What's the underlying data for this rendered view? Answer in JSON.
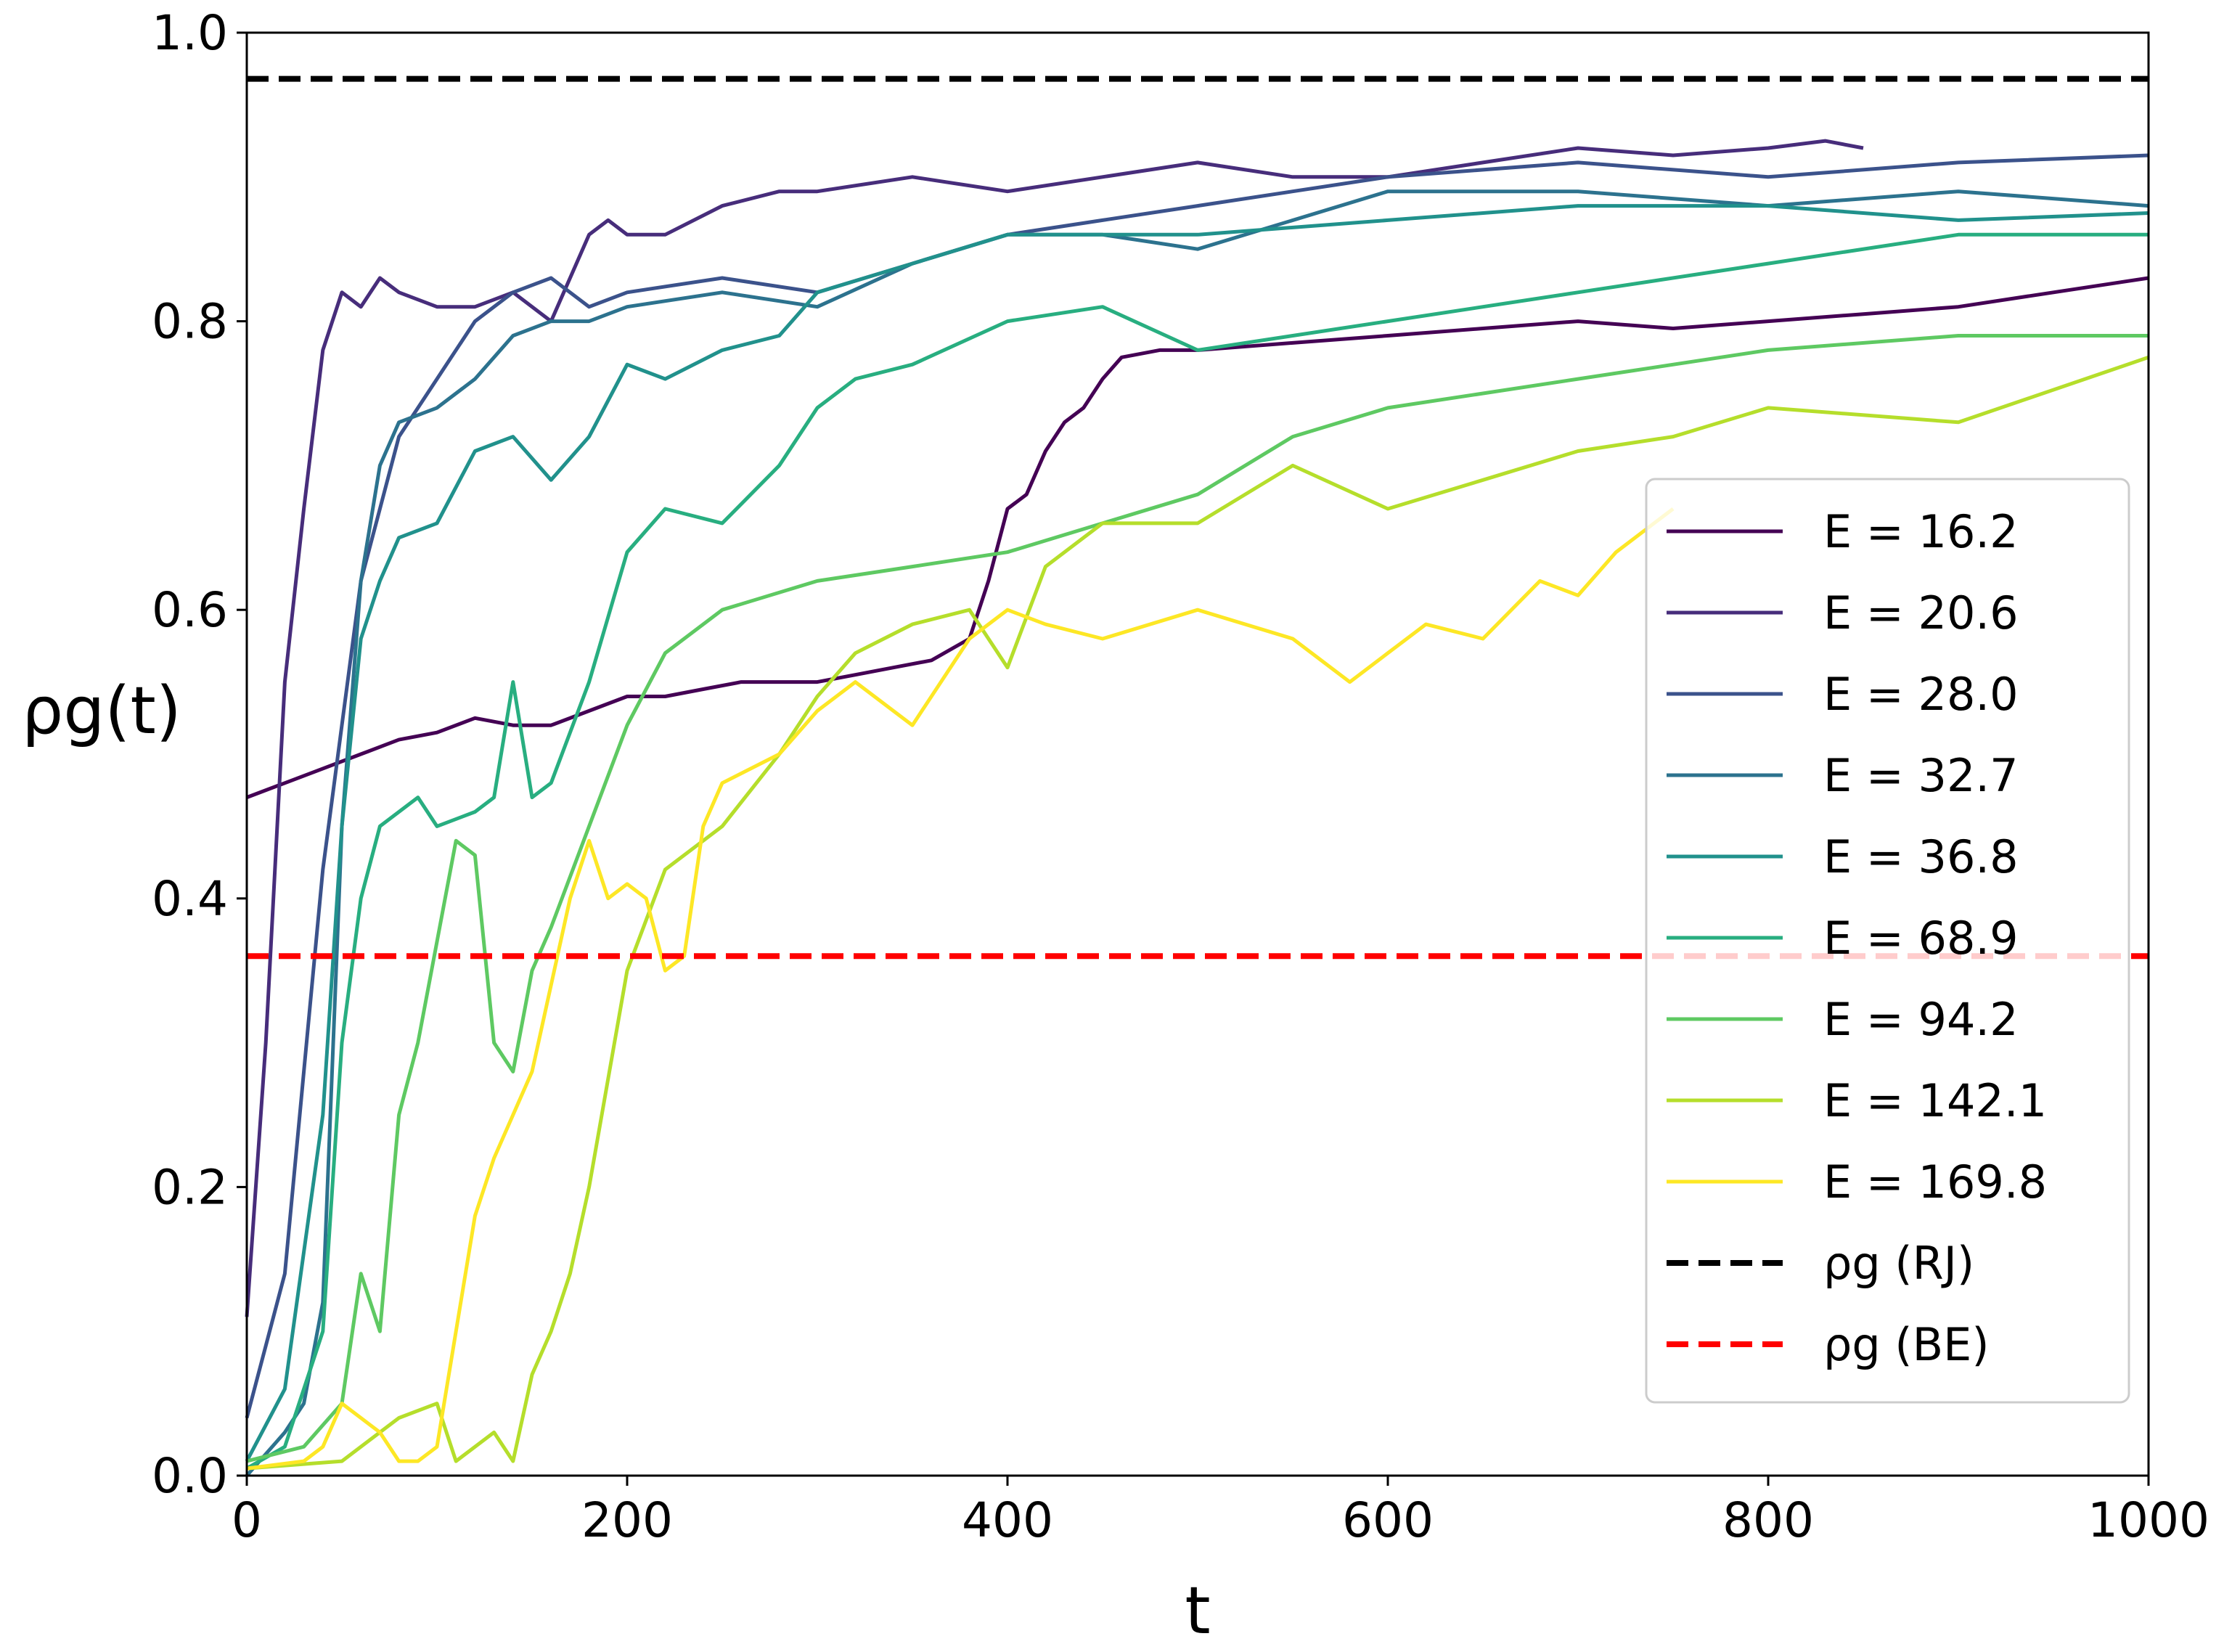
{
  "chart_data": {
    "type": "line",
    "title": "",
    "xlabel": "t",
    "ylabel": "ρg(t)",
    "xlim": [
      0,
      1000
    ],
    "ylim": [
      0.0,
      1.0
    ],
    "xticks": [
      "0",
      "200",
      "400",
      "600",
      "800",
      "1000"
    ],
    "yticks": [
      "0.0",
      "0.2",
      "0.4",
      "0.6",
      "0.8",
      "1.0"
    ],
    "grid": false,
    "legend_position": "right",
    "series": [
      {
        "name": "E = 16.2",
        "color": "#440154",
        "style": "solid",
        "x": [
          0,
          20,
          40,
          60,
          80,
          100,
          120,
          140,
          160,
          180,
          200,
          220,
          240,
          260,
          280,
          300,
          320,
          340,
          360,
          380,
          390,
          400,
          410,
          420,
          430,
          440,
          450,
          460,
          480,
          500,
          550,
          600,
          650,
          700,
          750,
          800,
          850,
          900,
          950,
          1000
        ],
        "y": [
          0.47,
          0.48,
          0.49,
          0.5,
          0.51,
          0.515,
          0.525,
          0.52,
          0.52,
          0.53,
          0.54,
          0.54,
          0.545,
          0.55,
          0.55,
          0.55,
          0.555,
          0.56,
          0.565,
          0.58,
          0.62,
          0.67,
          0.68,
          0.71,
          0.73,
          0.74,
          0.76,
          0.775,
          0.78,
          0.78,
          0.785,
          0.79,
          0.795,
          0.8,
          0.795,
          0.8,
          0.805,
          0.81,
          0.82,
          0.83
        ]
      },
      {
        "name": "E = 20.6",
        "color": "#472d7b",
        "style": "solid",
        "x": [
          0,
          10,
          20,
          30,
          40,
          50,
          60,
          70,
          80,
          100,
          120,
          140,
          160,
          170,
          180,
          190,
          200,
          220,
          250,
          280,
          300,
          350,
          400,
          450,
          500,
          550,
          600,
          650,
          700,
          750,
          800,
          830,
          850
        ],
        "y": [
          0.11,
          0.3,
          0.55,
          0.67,
          0.78,
          0.82,
          0.81,
          0.83,
          0.82,
          0.81,
          0.81,
          0.82,
          0.8,
          0.83,
          0.86,
          0.87,
          0.86,
          0.86,
          0.88,
          0.89,
          0.89,
          0.9,
          0.89,
          0.9,
          0.91,
          0.9,
          0.9,
          0.91,
          0.92,
          0.915,
          0.92,
          0.925,
          0.92
        ]
      },
      {
        "name": "E = 28.0",
        "color": "#3b528b",
        "style": "solid",
        "x": [
          0,
          20,
          40,
          60,
          80,
          100,
          120,
          140,
          160,
          180,
          200,
          250,
          300,
          350,
          400,
          450,
          500,
          600,
          700,
          800,
          900,
          1000
        ],
        "y": [
          0.04,
          0.14,
          0.42,
          0.62,
          0.72,
          0.76,
          0.8,
          0.82,
          0.83,
          0.81,
          0.82,
          0.83,
          0.82,
          0.84,
          0.86,
          0.87,
          0.88,
          0.9,
          0.91,
          0.9,
          0.91,
          0.915
        ]
      },
      {
        "name": "E = 32.7",
        "color": "#2c728e",
        "style": "solid",
        "x": [
          0,
          20,
          30,
          40,
          50,
          60,
          70,
          80,
          100,
          120,
          140,
          160,
          180,
          200,
          250,
          300,
          350,
          400,
          450,
          500,
          600,
          700,
          800,
          900,
          1000
        ],
        "y": [
          0.0,
          0.03,
          0.05,
          0.12,
          0.45,
          0.62,
          0.7,
          0.73,
          0.74,
          0.76,
          0.79,
          0.8,
          0.8,
          0.81,
          0.82,
          0.81,
          0.84,
          0.86,
          0.86,
          0.85,
          0.89,
          0.89,
          0.88,
          0.89,
          0.88
        ]
      },
      {
        "name": "E = 36.8",
        "color": "#21918c",
        "style": "solid",
        "x": [
          0,
          20,
          40,
          50,
          60,
          70,
          80,
          100,
          120,
          140,
          160,
          180,
          200,
          220,
          250,
          280,
          300,
          350,
          400,
          450,
          500,
          600,
          700,
          800,
          900,
          1000
        ],
        "y": [
          0.01,
          0.06,
          0.25,
          0.45,
          0.58,
          0.62,
          0.65,
          0.66,
          0.71,
          0.72,
          0.69,
          0.72,
          0.77,
          0.76,
          0.78,
          0.79,
          0.82,
          0.84,
          0.86,
          0.86,
          0.86,
          0.87,
          0.88,
          0.88,
          0.87,
          0.875
        ]
      },
      {
        "name": "E = 68.9",
        "color": "#28ae80",
        "style": "solid",
        "x": [
          0,
          20,
          40,
          50,
          60,
          70,
          80,
          90,
          100,
          120,
          130,
          140,
          150,
          160,
          180,
          200,
          220,
          250,
          280,
          300,
          320,
          350,
          400,
          450,
          500,
          550,
          600,
          700,
          800,
          900,
          1000
        ],
        "y": [
          0.005,
          0.02,
          0.1,
          0.3,
          0.4,
          0.45,
          0.46,
          0.47,
          0.45,
          0.46,
          0.47,
          0.55,
          0.47,
          0.48,
          0.55,
          0.64,
          0.67,
          0.66,
          0.7,
          0.74,
          0.76,
          0.77,
          0.8,
          0.81,
          0.78,
          0.79,
          0.8,
          0.82,
          0.84,
          0.86,
          0.86
        ]
      },
      {
        "name": "E = 94.2",
        "color": "#5ec962",
        "style": "solid",
        "x": [
          0,
          30,
          50,
          60,
          70,
          80,
          90,
          100,
          110,
          120,
          130,
          140,
          150,
          160,
          180,
          200,
          220,
          250,
          300,
          350,
          400,
          450,
          500,
          550,
          600,
          700,
          800,
          900,
          1000
        ],
        "y": [
          0.01,
          0.02,
          0.05,
          0.14,
          0.1,
          0.25,
          0.3,
          0.37,
          0.44,
          0.43,
          0.3,
          0.28,
          0.35,
          0.38,
          0.45,
          0.52,
          0.57,
          0.6,
          0.62,
          0.63,
          0.64,
          0.66,
          0.68,
          0.72,
          0.74,
          0.76,
          0.78,
          0.79,
          0.79
        ]
      },
      {
        "name": "E = 142.1",
        "color": "#b5de2b",
        "style": "solid",
        "x": [
          0,
          50,
          80,
          100,
          110,
          120,
          130,
          140,
          150,
          160,
          170,
          180,
          200,
          220,
          250,
          280,
          300,
          320,
          350,
          380,
          400,
          420,
          450,
          500,
          550,
          600,
          650,
          700,
          750,
          800,
          900,
          1000
        ],
        "y": [
          0.005,
          0.01,
          0.04,
          0.05,
          0.01,
          0.02,
          0.03,
          0.01,
          0.07,
          0.1,
          0.14,
          0.2,
          0.35,
          0.42,
          0.45,
          0.5,
          0.54,
          0.57,
          0.59,
          0.6,
          0.56,
          0.63,
          0.66,
          0.66,
          0.7,
          0.67,
          0.69,
          0.71,
          0.72,
          0.74,
          0.73,
          0.775
        ]
      },
      {
        "name": "E = 169.8",
        "color": "#fde725",
        "style": "solid",
        "x": [
          0,
          30,
          40,
          50,
          60,
          70,
          80,
          90,
          100,
          110,
          120,
          130,
          140,
          150,
          160,
          170,
          180,
          190,
          200,
          210,
          220,
          230,
          240,
          250,
          280,
          300,
          320,
          350,
          380,
          400,
          420,
          450,
          500,
          550,
          580,
          600,
          620,
          650,
          680,
          700,
          720,
          750
        ],
        "y": [
          0.005,
          0.01,
          0.02,
          0.05,
          0.04,
          0.03,
          0.01,
          0.01,
          0.02,
          0.1,
          0.18,
          0.22,
          0.25,
          0.28,
          0.34,
          0.4,
          0.44,
          0.4,
          0.41,
          0.4,
          0.35,
          0.36,
          0.45,
          0.48,
          0.5,
          0.53,
          0.55,
          0.52,
          0.58,
          0.6,
          0.59,
          0.58,
          0.6,
          0.58,
          0.55,
          0.57,
          0.59,
          0.58,
          0.62,
          0.61,
          0.64,
          0.67
        ]
      },
      {
        "name": "ρg (RJ)",
        "color": "#000000",
        "style": "dashed",
        "x": [
          0,
          1000
        ],
        "y": [
          0.968,
          0.968
        ]
      },
      {
        "name": "ρg (BE)",
        "color": "#ff0000",
        "style": "dashed",
        "x": [
          0,
          1000
        ],
        "y": [
          0.36,
          0.36
        ]
      }
    ]
  }
}
